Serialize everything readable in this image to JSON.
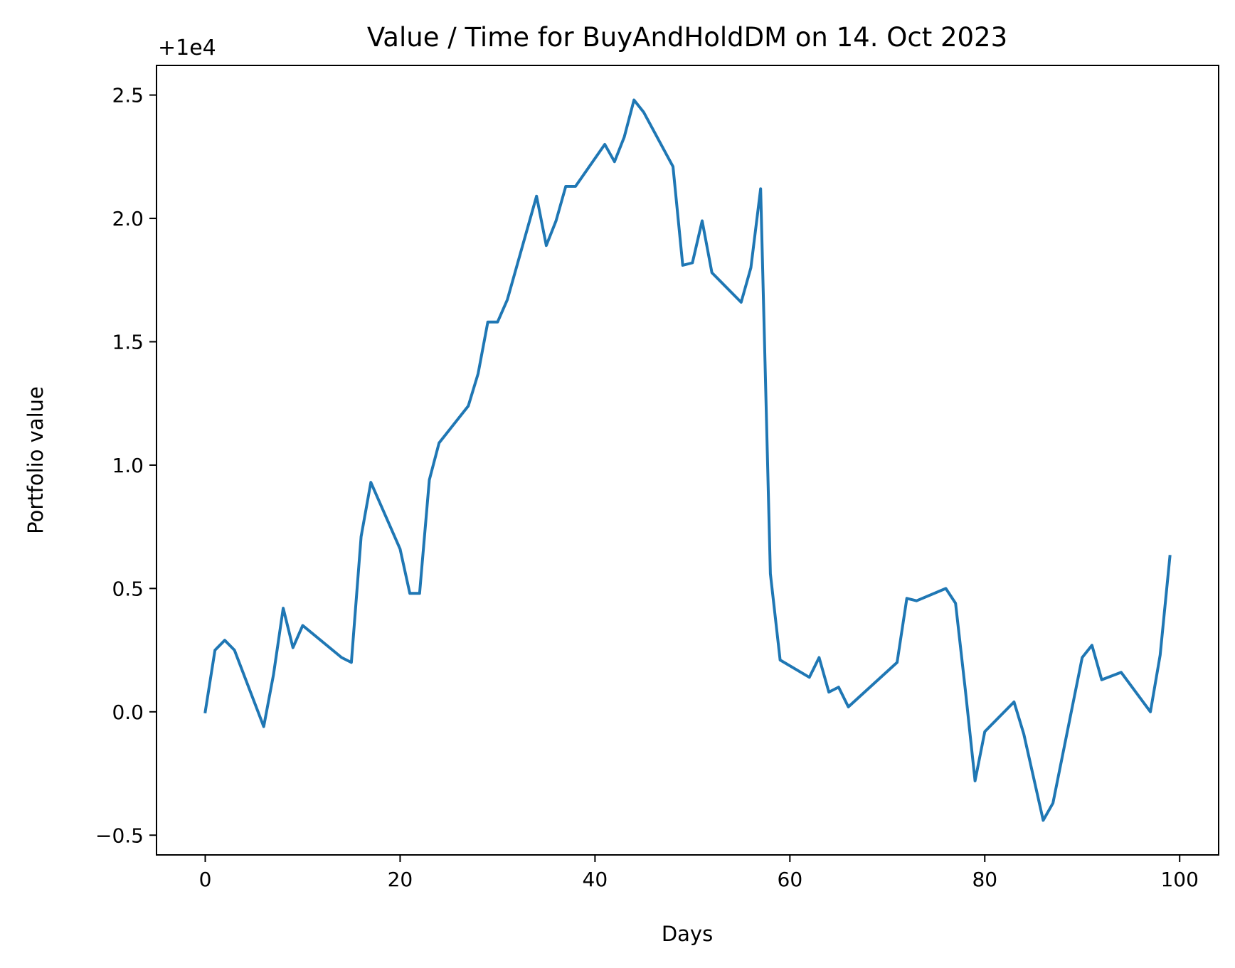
{
  "chart_data": {
    "type": "line",
    "title": "Value / Time for BuyAndHoldDM on 14. Oct 2023",
    "xlabel": "Days",
    "ylabel": "Portfolio value",
    "y_offset_text": "+1e4",
    "xlim": [
      -5,
      104
    ],
    "ylim": [
      -0.58,
      2.62
    ],
    "x_ticks": [
      0,
      20,
      40,
      60,
      80,
      100
    ],
    "x_tick_labels": [
      "0",
      "20",
      "40",
      "60",
      "80",
      "100"
    ],
    "y_ticks": [
      -0.5,
      0.0,
      0.5,
      1.0,
      1.5,
      2.0,
      2.5
    ],
    "y_tick_labels": [
      "−0.5",
      "0.0",
      "0.5",
      "1.0",
      "1.5",
      "2.0",
      "2.5"
    ],
    "grid": false,
    "legend": "none",
    "series": [
      {
        "color": "#1f77b4",
        "x": [
          0,
          1,
          2,
          3,
          6,
          7,
          8,
          9,
          10,
          14,
          15,
          16,
          17,
          20,
          21,
          22,
          23,
          24,
          27,
          28,
          29,
          30,
          31,
          34,
          35,
          36,
          37,
          38,
          41,
          42,
          43,
          44,
          45,
          48,
          49,
          50,
          51,
          52,
          55,
          56,
          57,
          58,
          59,
          62,
          63,
          64,
          65,
          66,
          71,
          72,
          73,
          76,
          77,
          78,
          79,
          80,
          83,
          84,
          86,
          87,
          90,
          91,
          92,
          94,
          97,
          98,
          99
        ],
        "y": [
          0.0,
          0.25,
          0.29,
          0.25,
          -0.06,
          0.15,
          0.42,
          0.26,
          0.35,
          0.22,
          0.2,
          0.71,
          0.93,
          0.66,
          0.48,
          0.48,
          0.94,
          1.09,
          1.24,
          1.37,
          1.58,
          1.58,
          1.67,
          2.09,
          1.89,
          1.99,
          2.13,
          2.13,
          2.3,
          2.23,
          2.33,
          2.48,
          2.43,
          2.21,
          1.81,
          1.82,
          1.99,
          1.78,
          1.66,
          1.8,
          2.12,
          0.56,
          0.21,
          0.14,
          0.22,
          0.08,
          0.1,
          0.02,
          0.2,
          0.46,
          0.45,
          0.5,
          0.44,
          0.09,
          -0.28,
          -0.08,
          0.04,
          -0.09,
          -0.44,
          -0.37,
          0.22,
          0.27,
          0.13,
          0.16,
          0.0,
          0.23,
          0.63
        ]
      }
    ]
  }
}
